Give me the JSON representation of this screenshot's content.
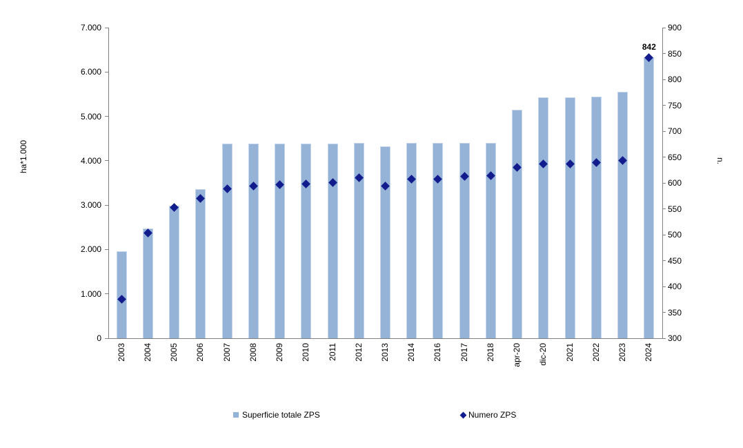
{
  "chart_data": {
    "type": "bar",
    "subtype": "combo-bar-scatter",
    "categories": [
      "2003",
      "2004",
      "2005",
      "2006",
      "2007",
      "2008",
      "2009",
      "2010",
      "2011",
      "2012",
      "2013",
      "2014",
      "2016",
      "2017",
      "2018",
      "apr-20",
      "dic-20",
      "2021",
      "2022",
      "2023",
      "2024"
    ],
    "series": [
      {
        "name": "Superficie totale ZPS",
        "type": "bar",
        "axis": "left",
        "color": "#95B3D7",
        "border_color": "#C5D5EB",
        "values": [
          1960,
          2480,
          2980,
          3360,
          4390,
          4380,
          4380,
          4380,
          4390,
          4410,
          4330,
          4410,
          4410,
          4410,
          4410,
          5150,
          5430,
          5430,
          5440,
          5560,
          6330
        ]
      },
      {
        "name": "Numero ZPS",
        "type": "scatter",
        "marker": "diamond",
        "axis": "right",
        "color": "#121C8C",
        "values": [
          375,
          503,
          553,
          570,
          589,
          594,
          597,
          598,
          601,
          610,
          594,
          608,
          608,
          613,
          614,
          630,
          637,
          637,
          640,
          644,
          842
        ]
      }
    ],
    "annotations": [
      {
        "category": "2024",
        "series": "Numero ZPS",
        "text": "842"
      }
    ],
    "left_axis": {
      "title": "ha*1.000",
      "min": 0,
      "max": 7000,
      "step": 1000,
      "tick_labels": [
        "0",
        "1.000",
        "2.000",
        "3.000",
        "4.000",
        "5.000",
        "6.000",
        "7.000"
      ]
    },
    "right_axis": {
      "title": "n.",
      "min": 300,
      "max": 900,
      "step": 50,
      "tick_labels": [
        "300",
        "350",
        "400",
        "450",
        "500",
        "550",
        "600",
        "650",
        "700",
        "750",
        "800",
        "850",
        "900"
      ]
    },
    "grid": "off",
    "legend_position": "bottom",
    "legend": [
      "Superficie totale ZPS",
      "Numero ZPS"
    ]
  }
}
